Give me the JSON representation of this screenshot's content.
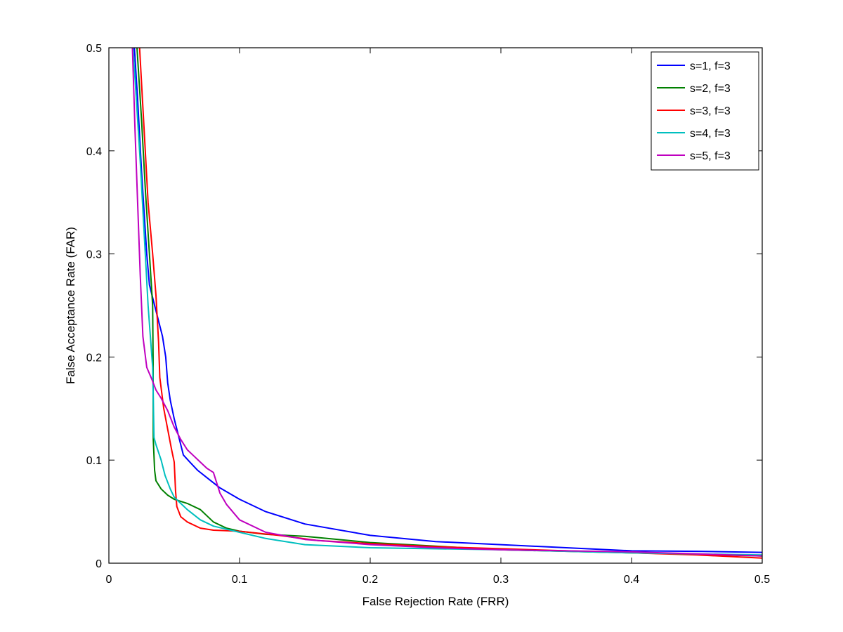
{
  "chart_data": {
    "type": "line",
    "title": "",
    "xlabel": "False Rejection Rate (FRR)",
    "ylabel": "False Acceptance Rate (FAR)",
    "xlim": [
      0,
      0.5
    ],
    "ylim": [
      0,
      0.5
    ],
    "xticks": [
      0,
      0.1,
      0.2,
      0.3,
      0.4,
      0.5
    ],
    "yticks": [
      0,
      0.1,
      0.2,
      0.3,
      0.4,
      0.5
    ],
    "xtick_labels": [
      "0",
      "0.1",
      "0.2",
      "0.3",
      "0.4",
      "0.5"
    ],
    "ytick_labels": [
      "0",
      "0.1",
      "0.2",
      "0.3",
      "0.4",
      "0.5"
    ],
    "grid": false,
    "legend_position": "top-right",
    "series": [
      {
        "name": "s=1, f=3",
        "color": "#0000ff",
        "points": [
          [
            0.0195,
            0.5
          ],
          [
            0.022,
            0.45
          ],
          [
            0.025,
            0.38
          ],
          [
            0.029,
            0.3
          ],
          [
            0.031,
            0.27
          ],
          [
            0.035,
            0.25
          ],
          [
            0.038,
            0.235
          ],
          [
            0.041,
            0.22
          ],
          [
            0.0435,
            0.2
          ],
          [
            0.045,
            0.175
          ],
          [
            0.047,
            0.158
          ],
          [
            0.05,
            0.14
          ],
          [
            0.054,
            0.12
          ],
          [
            0.057,
            0.105
          ],
          [
            0.062,
            0.098
          ],
          [
            0.068,
            0.09
          ],
          [
            0.075,
            0.083
          ],
          [
            0.085,
            0.073
          ],
          [
            0.1,
            0.062
          ],
          [
            0.12,
            0.05
          ],
          [
            0.15,
            0.038
          ],
          [
            0.2,
            0.027
          ],
          [
            0.25,
            0.021
          ],
          [
            0.3,
            0.018
          ],
          [
            0.35,
            0.015
          ],
          [
            0.4,
            0.012
          ],
          [
            0.45,
            0.0115
          ],
          [
            0.5,
            0.0105
          ]
        ]
      },
      {
        "name": "s=2, f=3",
        "color": "#008000",
        "points": [
          [
            0.0215,
            0.5
          ],
          [
            0.025,
            0.43
          ],
          [
            0.028,
            0.36
          ],
          [
            0.031,
            0.3
          ],
          [
            0.0335,
            0.25
          ],
          [
            0.0338,
            0.2
          ],
          [
            0.034,
            0.12
          ],
          [
            0.035,
            0.09
          ],
          [
            0.036,
            0.08
          ],
          [
            0.04,
            0.072
          ],
          [
            0.045,
            0.066
          ],
          [
            0.05,
            0.062
          ],
          [
            0.06,
            0.058
          ],
          [
            0.07,
            0.052
          ],
          [
            0.08,
            0.04
          ],
          [
            0.09,
            0.034
          ],
          [
            0.1,
            0.031
          ],
          [
            0.12,
            0.028
          ],
          [
            0.15,
            0.026
          ],
          [
            0.2,
            0.02
          ],
          [
            0.3,
            0.013
          ],
          [
            0.4,
            0.01
          ],
          [
            0.5,
            0.007
          ]
        ]
      },
      {
        "name": "s=3, f=3",
        "color": "#ff0000",
        "points": [
          [
            0.0235,
            0.5
          ],
          [
            0.027,
            0.42
          ],
          [
            0.03,
            0.35
          ],
          [
            0.0335,
            0.3
          ],
          [
            0.036,
            0.26
          ],
          [
            0.038,
            0.215
          ],
          [
            0.039,
            0.18
          ],
          [
            0.042,
            0.15
          ],
          [
            0.045,
            0.13
          ],
          [
            0.048,
            0.11
          ],
          [
            0.05,
            0.098
          ],
          [
            0.051,
            0.07
          ],
          [
            0.052,
            0.055
          ],
          [
            0.055,
            0.045
          ],
          [
            0.06,
            0.04
          ],
          [
            0.07,
            0.034
          ],
          [
            0.08,
            0.032
          ],
          [
            0.1,
            0.031
          ],
          [
            0.13,
            0.027
          ],
          [
            0.16,
            0.022
          ],
          [
            0.2,
            0.019
          ],
          [
            0.25,
            0.016
          ],
          [
            0.3,
            0.014
          ],
          [
            0.35,
            0.012
          ],
          [
            0.4,
            0.01
          ],
          [
            0.45,
            0.008
          ],
          [
            0.5,
            0.005
          ]
        ]
      },
      {
        "name": "s=4, f=3",
        "color": "#00bfbf",
        "points": [
          [
            0.0185,
            0.5
          ],
          [
            0.021,
            0.45
          ],
          [
            0.024,
            0.39
          ],
          [
            0.027,
            0.32
          ],
          [
            0.03,
            0.25
          ],
          [
            0.0335,
            0.19
          ],
          [
            0.034,
            0.16
          ],
          [
            0.0345,
            0.122
          ],
          [
            0.036,
            0.115
          ],
          [
            0.04,
            0.1
          ],
          [
            0.043,
            0.085
          ],
          [
            0.047,
            0.072
          ],
          [
            0.05,
            0.064
          ],
          [
            0.055,
            0.058
          ],
          [
            0.06,
            0.052
          ],
          [
            0.07,
            0.042
          ],
          [
            0.08,
            0.036
          ],
          [
            0.1,
            0.03
          ],
          [
            0.12,
            0.024
          ],
          [
            0.15,
            0.018
          ],
          [
            0.2,
            0.015
          ],
          [
            0.3,
            0.013
          ],
          [
            0.4,
            0.01
          ],
          [
            0.5,
            0.008
          ]
        ]
      },
      {
        "name": "s=5, f=3",
        "color": "#bf00bf",
        "points": [
          [
            0.018,
            0.5
          ],
          [
            0.02,
            0.42
          ],
          [
            0.022,
            0.35
          ],
          [
            0.024,
            0.28
          ],
          [
            0.026,
            0.22
          ],
          [
            0.029,
            0.19
          ],
          [
            0.033,
            0.178
          ],
          [
            0.036,
            0.168
          ],
          [
            0.04,
            0.16
          ],
          [
            0.045,
            0.148
          ],
          [
            0.05,
            0.132
          ],
          [
            0.055,
            0.12
          ],
          [
            0.06,
            0.11
          ],
          [
            0.065,
            0.104
          ],
          [
            0.07,
            0.098
          ],
          [
            0.075,
            0.092
          ],
          [
            0.08,
            0.088
          ],
          [
            0.082,
            0.08
          ],
          [
            0.085,
            0.068
          ],
          [
            0.09,
            0.057
          ],
          [
            0.1,
            0.042
          ],
          [
            0.12,
            0.03
          ],
          [
            0.15,
            0.023
          ],
          [
            0.2,
            0.018
          ],
          [
            0.25,
            0.015
          ],
          [
            0.3,
            0.013
          ],
          [
            0.35,
            0.012
          ],
          [
            0.4,
            0.011
          ],
          [
            0.45,
            0.009
          ],
          [
            0.5,
            0.007
          ]
        ]
      }
    ]
  }
}
